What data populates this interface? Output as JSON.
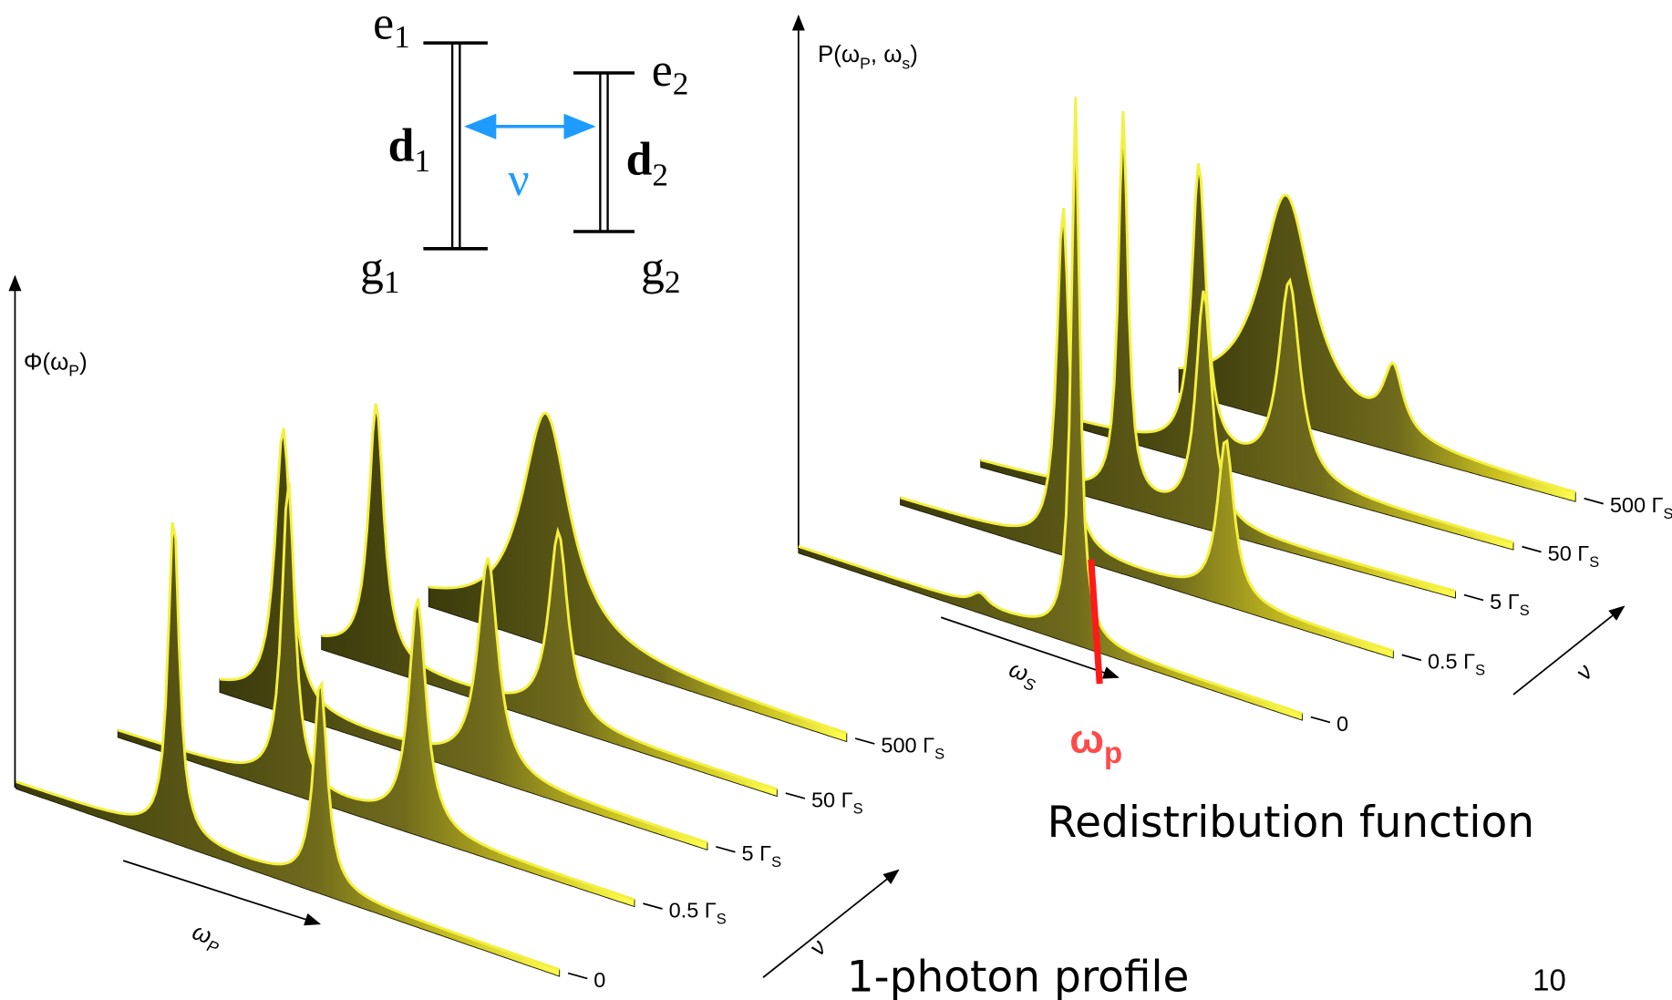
{
  "levels": {
    "e1": {
      "symbol": "e",
      "sub": "1"
    },
    "e2": {
      "symbol": "e",
      "sub": "2"
    },
    "d1": {
      "symbol": "d",
      "sub": "1"
    },
    "d2": {
      "symbol": "d",
      "sub": "2"
    },
    "g1": {
      "symbol": "g",
      "sub": "1"
    },
    "g2": {
      "symbol": "g",
      "sub": "2"
    },
    "coupling": "ν"
  },
  "left_plot": {
    "y_label": {
      "text": "Φ(ω",
      "sub": "P",
      "after": ")"
    },
    "x_label": {
      "text": "ω",
      "sub": "P"
    },
    "depth_label": "ν",
    "rows": [
      {
        "text": "0"
      },
      {
        "text": "0.5 Γ",
        "sub": "S"
      },
      {
        "text": "5 Γ",
        "sub": "S"
      },
      {
        "text": "50 Γ",
        "sub": "S"
      },
      {
        "text": "500 Γ",
        "sub": "S"
      }
    ],
    "caption": "1-photon profile"
  },
  "right_plot": {
    "y_label": {
      "text": "P(ω",
      "sub": "P",
      "mid": ", ω",
      "sub2": "s",
      "after": ")"
    },
    "x_label": {
      "text": "ω",
      "sub": "S"
    },
    "depth_label": "ν",
    "rows": [
      {
        "text": "0"
      },
      {
        "text": "0.5 Γ",
        "sub": "S"
      },
      {
        "text": "5 Γ",
        "sub": "S"
      },
      {
        "text": "50 Γ",
        "sub": "S"
      },
      {
        "text": "500 Γ",
        "sub": "S"
      }
    ],
    "marker": {
      "text": "ω",
      "sub": "p"
    },
    "caption": "Redistribution function"
  },
  "page_number": "10"
}
